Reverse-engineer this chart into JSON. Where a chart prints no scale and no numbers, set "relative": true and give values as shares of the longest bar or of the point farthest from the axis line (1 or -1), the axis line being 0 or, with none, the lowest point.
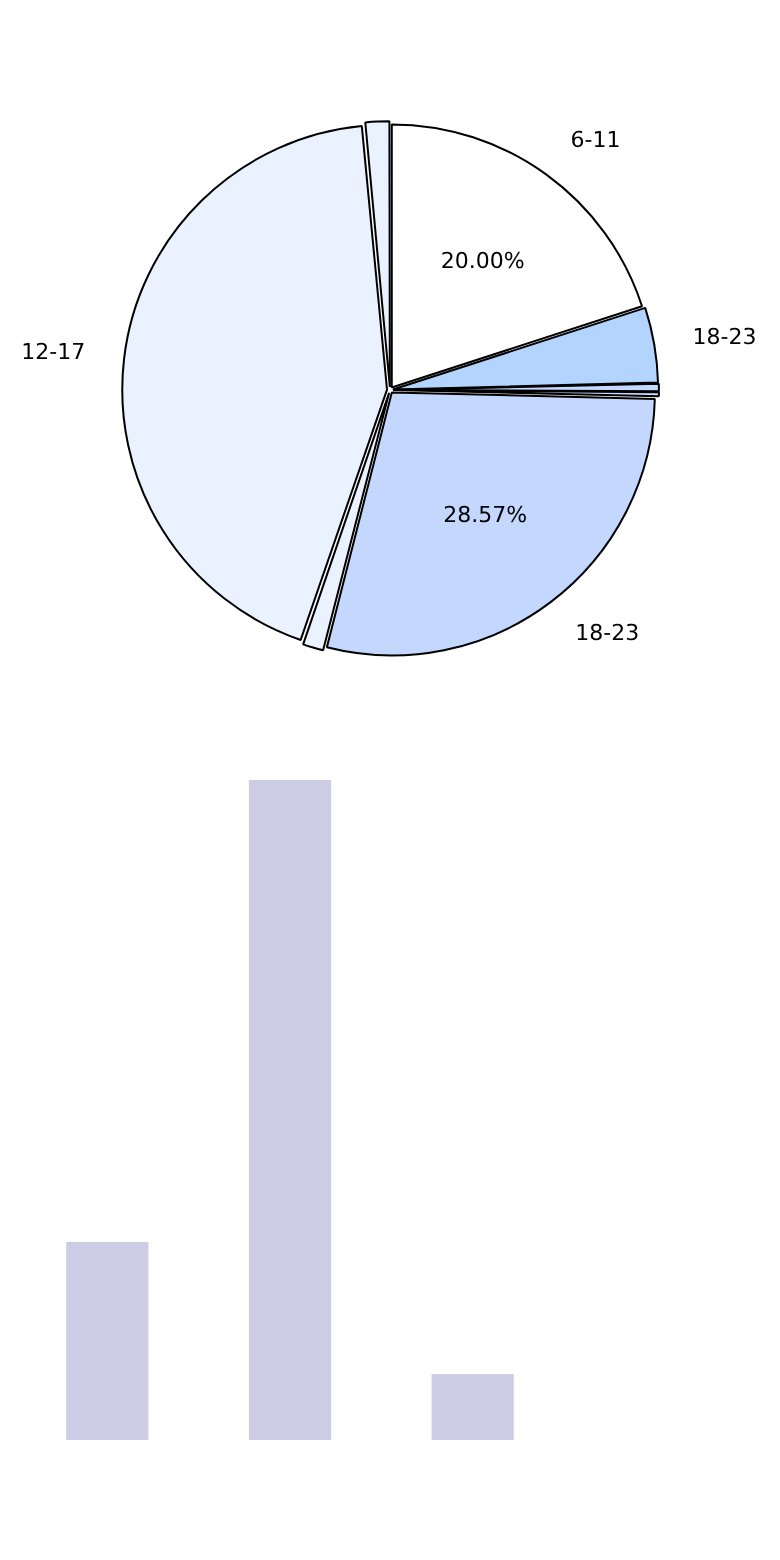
{
  "chart_data": [
    {
      "type": "pie",
      "categories": [
        "6-11",
        "18-23",
        null,
        null,
        "18-23",
        null,
        "12-17",
        null
      ],
      "values": [
        20,
        4.6,
        0.5,
        0.3,
        28.57,
        1.3,
        43.23,
        1.5
      ],
      "colors": [
        "#ffffff",
        "#b3d4ff",
        "#c4d9ff",
        "#c4d9ff",
        "#c4d8ff",
        "#eaf1ff",
        "#eaf1ff",
        "#eaf1ff"
      ],
      "value_labels": [
        "20.00%",
        null,
        null,
        null,
        "28.57%",
        null,
        null,
        null
      ]
    },
    {
      "type": "bar",
      "categories": [
        null,
        null,
        null
      ],
      "values": [
        0.3,
        1,
        0.1
      ],
      "color": "#cccce4",
      "relative": true
    }
  ]
}
